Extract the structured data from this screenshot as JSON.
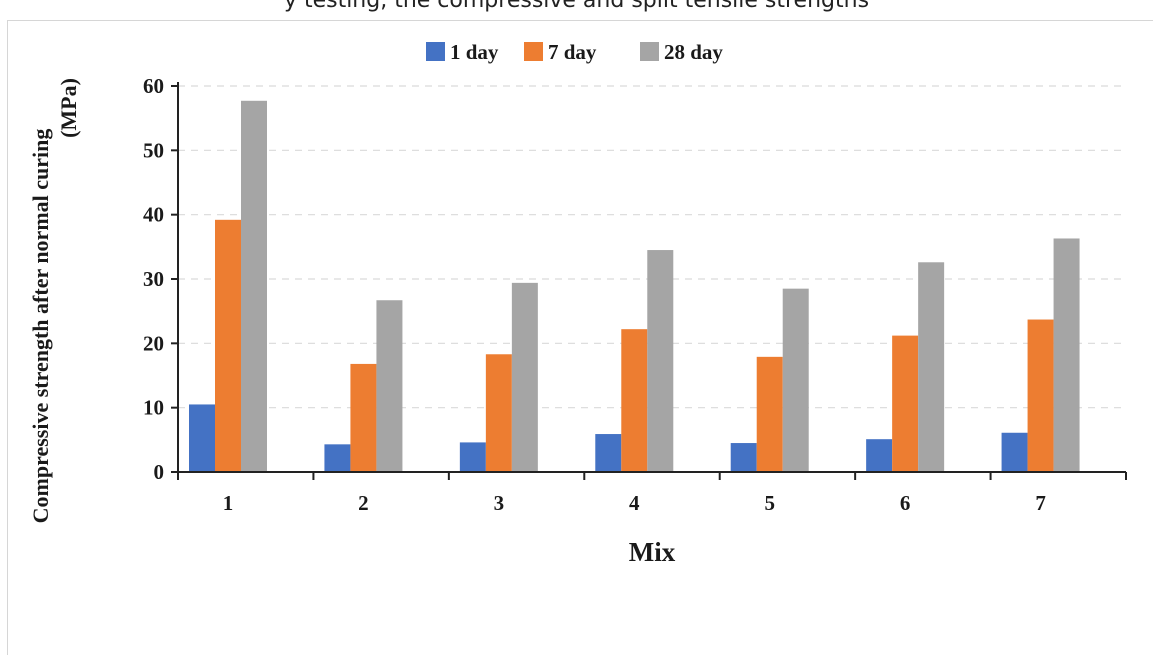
{
  "caption": "y testing, the compressive and split tensile strengths",
  "chart_data": {
    "type": "bar",
    "title": "",
    "xlabel": "Mix",
    "ylabel_lines": [
      "Compressive strength after normal curing",
      "(MPa)"
    ],
    "categories": [
      "1",
      "2",
      "3",
      "4",
      "5",
      "6",
      "7"
    ],
    "ylim": [
      0,
      60
    ],
    "yticks": [
      0,
      10,
      20,
      30,
      40,
      50,
      60
    ],
    "grid": "horizontal-dashed",
    "legend_position": "top-center",
    "series": [
      {
        "name": "1 day",
        "color": "#4472c4",
        "values": [
          10.5,
          4.3,
          4.6,
          5.9,
          4.5,
          5.1,
          6.1
        ]
      },
      {
        "name": "7 day",
        "color": "#ed7d31",
        "values": [
          39.2,
          16.8,
          18.3,
          22.2,
          17.9,
          21.2,
          23.7
        ]
      },
      {
        "name": "28 day",
        "color": "#a5a5a5",
        "values": [
          57.7,
          26.7,
          29.4,
          34.5,
          28.5,
          32.6,
          36.3
        ]
      }
    ]
  }
}
